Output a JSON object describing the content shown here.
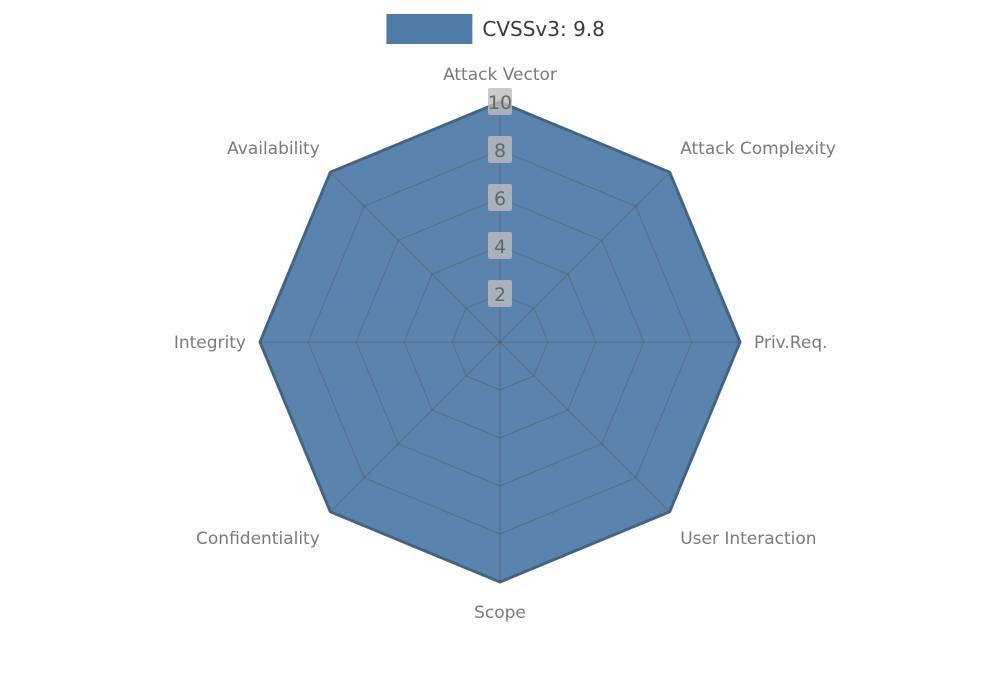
{
  "legend": {
    "label": "CVSSv3: 9.8"
  },
  "chart_data": {
    "type": "radar",
    "title": "CVSSv3: 9.8",
    "categories": [
      "Attack Vector",
      "Attack Complexity",
      "Priv.Req.",
      "User Interaction",
      "Scope",
      "Confidentiality",
      "Integrity",
      "Availability"
    ],
    "series": [
      {
        "name": "CVSSv3: 9.8",
        "values": [
          10,
          10,
          10,
          10,
          10,
          10,
          10,
          10
        ]
      }
    ],
    "rlim": [
      0,
      10
    ],
    "ticks": [
      2,
      4,
      6,
      8,
      10
    ],
    "grid": true,
    "legend_position": "top-center",
    "colors": {
      "fill": "#4e7ba7",
      "fill_edge": "#41688f",
      "grid_line": "#555555",
      "axis_label": "#7a7a7a",
      "tick_label": "#666666",
      "tick_box": "#bdbdbd",
      "legend_text": "#3a3a3a"
    }
  }
}
